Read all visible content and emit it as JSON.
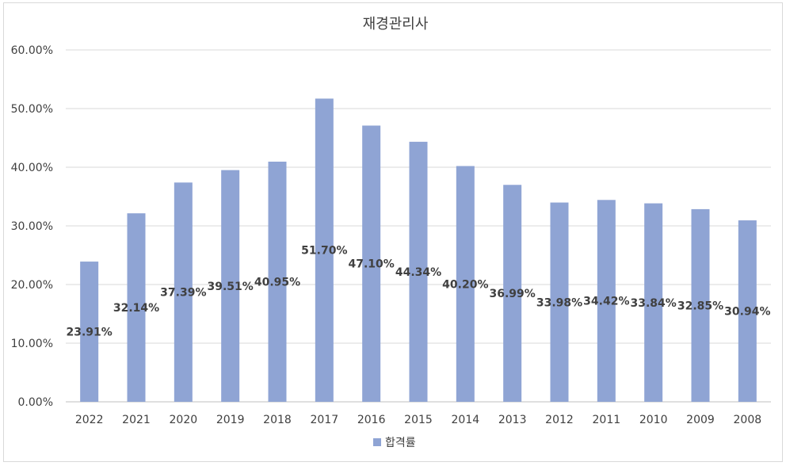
{
  "chart_data": {
    "type": "bar",
    "title": "재경관리사",
    "categories": [
      "2022",
      "2021",
      "2020",
      "2019",
      "2018",
      "2017",
      "2016",
      "2015",
      "2014",
      "2013",
      "2012",
      "2011",
      "2010",
      "2009",
      "2008"
    ],
    "series": [
      {
        "name": "합격률",
        "values": [
          23.91,
          32.14,
          37.39,
          39.51,
          40.95,
          51.7,
          47.1,
          44.34,
          40.2,
          36.99,
          33.98,
          34.42,
          33.84,
          32.85,
          30.94
        ],
        "labels": [
          "23.91%",
          "32.14%",
          "37.39%",
          "39.51%",
          "40.95%",
          "51.70%",
          "47.10%",
          "44.34%",
          "40.20%",
          "36.99%",
          "33.98%",
          "34.42%",
          "33.84%",
          "32.85%",
          "30.94%"
        ],
        "color": "#8fa4d4"
      }
    ],
    "yticks": [
      "0.00%",
      "10.00%",
      "20.00%",
      "30.00%",
      "40.00%",
      "50.00%",
      "60.00%"
    ],
    "ylim": [
      0,
      60
    ],
    "grid": true,
    "legend_position": "bottom"
  }
}
